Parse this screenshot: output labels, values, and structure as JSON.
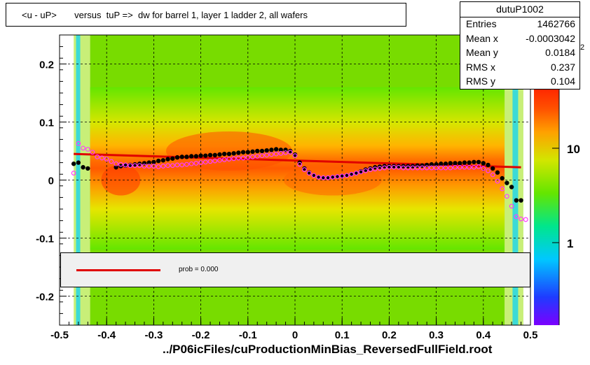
{
  "chart_data": {
    "type": "scatter",
    "title": "<u - uP>       versus  tuP =>  dw for barrel 1, layer 1 ladder 2, all wafers",
    "xlabel": "../P06icFiles/cuProductionMinBias_ReversedFullField.root",
    "ylabel": "",
    "xlim": [
      -0.5,
      0.5
    ],
    "ylim": [
      -0.25,
      0.25
    ],
    "x_ticks": [
      "-0.5",
      "-0.4",
      "-0.3",
      "-0.2",
      "-0.1",
      "0",
      "0.1",
      "0.2",
      "0.3",
      "0.4",
      "0.5"
    ],
    "y_ticks": [
      "-0.2",
      "-0.1",
      "0",
      "0.1",
      "0.2"
    ],
    "grid": true,
    "colorbar": {
      "scale": "log",
      "tick_labels": [
        "1",
        "10"
      ],
      "exponent_label": "2"
    },
    "stats": {
      "name": "dutuP1002",
      "rows": [
        {
          "key": "Entries",
          "value": "1462766"
        },
        {
          "key": "Mean x",
          "value": "-0.0003042"
        },
        {
          "key": "Mean y",
          "value": "0.0184"
        },
        {
          "key": "RMS x",
          "value": "0.237"
        },
        {
          "key": "RMS y",
          "value": "0.104"
        }
      ]
    },
    "fit": {
      "label": "prob = 0.000",
      "line": {
        "x": [
          -0.47,
          0.48
        ],
        "y": [
          0.045,
          0.022
        ]
      },
      "color": "#e00000"
    },
    "series": [
      {
        "marker": "filled-circle",
        "color": "#000000",
        "x": [
          -0.47,
          -0.46,
          -0.45,
          -0.44,
          -0.38,
          -0.37,
          -0.36,
          -0.35,
          -0.34,
          -0.33,
          -0.32,
          -0.31,
          -0.3,
          -0.29,
          -0.28,
          -0.27,
          -0.26,
          -0.25,
          -0.24,
          -0.23,
          -0.22,
          -0.21,
          -0.2,
          -0.19,
          -0.18,
          -0.17,
          -0.16,
          -0.15,
          -0.14,
          -0.13,
          -0.12,
          -0.11,
          -0.1,
          -0.09,
          -0.08,
          -0.07,
          -0.06,
          -0.05,
          -0.04,
          -0.03,
          -0.02,
          -0.01,
          0.0,
          0.01,
          0.02,
          0.03,
          0.04,
          0.05,
          0.06,
          0.07,
          0.08,
          0.09,
          0.1,
          0.11,
          0.12,
          0.13,
          0.14,
          0.15,
          0.16,
          0.17,
          0.18,
          0.19,
          0.2,
          0.21,
          0.22,
          0.23,
          0.24,
          0.25,
          0.26,
          0.27,
          0.28,
          0.29,
          0.3,
          0.31,
          0.32,
          0.33,
          0.34,
          0.35,
          0.36,
          0.37,
          0.38,
          0.39,
          0.4,
          0.41,
          0.42,
          0.43,
          0.44,
          0.45,
          0.46,
          0.47,
          0.48
        ],
        "y": [
          0.028,
          0.03,
          0.022,
          0.02,
          0.022,
          0.024,
          0.025,
          0.026,
          0.027,
          0.028,
          0.029,
          0.03,
          0.031,
          0.033,
          0.034,
          0.036,
          0.037,
          0.039,
          0.04,
          0.04,
          0.041,
          0.041,
          0.042,
          0.042,
          0.043,
          0.043,
          0.044,
          0.045,
          0.045,
          0.046,
          0.047,
          0.048,
          0.048,
          0.049,
          0.05,
          0.05,
          0.051,
          0.052,
          0.053,
          0.052,
          0.052,
          0.05,
          0.044,
          0.03,
          0.02,
          0.013,
          0.008,
          0.005,
          0.004,
          0.004,
          0.005,
          0.006,
          0.007,
          0.008,
          0.01,
          0.012,
          0.015,
          0.018,
          0.02,
          0.022,
          0.023,
          0.024,
          0.024,
          0.024,
          0.024,
          0.024,
          0.024,
          0.024,
          0.025,
          0.025,
          0.026,
          0.027,
          0.027,
          0.028,
          0.028,
          0.029,
          0.029,
          0.029,
          0.03,
          0.03,
          0.031,
          0.031,
          0.029,
          0.026,
          0.02,
          0.013,
          0.003,
          -0.005,
          -0.012,
          -0.035,
          -0.035
        ]
      },
      {
        "marker": "open-circle",
        "color": "#ff3cff",
        "x": [
          -0.47,
          -0.46,
          -0.45,
          -0.44,
          -0.43,
          -0.42,
          -0.41,
          -0.4,
          -0.39,
          -0.38,
          -0.37,
          -0.36,
          -0.35,
          -0.34,
          -0.33,
          -0.32,
          -0.31,
          -0.3,
          -0.29,
          -0.28,
          -0.27,
          -0.26,
          -0.25,
          -0.24,
          -0.23,
          -0.22,
          -0.21,
          -0.2,
          -0.19,
          -0.18,
          -0.17,
          -0.16,
          -0.15,
          -0.14,
          -0.13,
          -0.12,
          -0.11,
          -0.1,
          -0.09,
          -0.08,
          -0.07,
          -0.06,
          -0.05,
          -0.04,
          -0.03,
          -0.02,
          -0.01,
          0.0,
          0.01,
          0.02,
          0.03,
          0.04,
          0.05,
          0.06,
          0.07,
          0.08,
          0.09,
          0.1,
          0.11,
          0.12,
          0.13,
          0.14,
          0.15,
          0.16,
          0.17,
          0.18,
          0.19,
          0.2,
          0.21,
          0.22,
          0.23,
          0.24,
          0.25,
          0.26,
          0.27,
          0.28,
          0.29,
          0.3,
          0.31,
          0.32,
          0.33,
          0.34,
          0.35,
          0.36,
          0.37,
          0.38,
          0.39,
          0.4,
          0.41,
          0.42,
          0.43,
          0.44,
          0.45,
          0.46,
          0.47,
          0.48,
          0.49
        ],
        "y": [
          0.012,
          0.063,
          0.055,
          0.053,
          0.048,
          0.04,
          0.038,
          0.036,
          0.032,
          0.028,
          0.027,
          0.026,
          0.025,
          0.025,
          0.025,
          0.024,
          0.024,
          0.024,
          0.023,
          0.024,
          0.025,
          0.025,
          0.026,
          0.026,
          0.027,
          0.028,
          0.029,
          0.03,
          0.031,
          0.032,
          0.033,
          0.034,
          0.035,
          0.036,
          0.037,
          0.038,
          0.038,
          0.039,
          0.04,
          0.041,
          0.042,
          0.043,
          0.044,
          0.045,
          0.046,
          0.047,
          0.048,
          0.042,
          0.027,
          0.018,
          0.012,
          0.008,
          0.005,
          0.004,
          0.004,
          0.005,
          0.006,
          0.007,
          0.008,
          0.01,
          0.012,
          0.014,
          0.016,
          0.018,
          0.019,
          0.02,
          0.021,
          0.022,
          0.022,
          0.022,
          0.021,
          0.021,
          0.021,
          0.021,
          0.021,
          0.021,
          0.021,
          0.021,
          0.021,
          0.021,
          0.021,
          0.022,
          0.022,
          0.022,
          0.022,
          0.022,
          0.023,
          0.02,
          0.016,
          0.009,
          -0.002,
          -0.015,
          -0.028,
          -0.045,
          -0.063,
          -0.067,
          -0.068
        ]
      }
    ]
  }
}
